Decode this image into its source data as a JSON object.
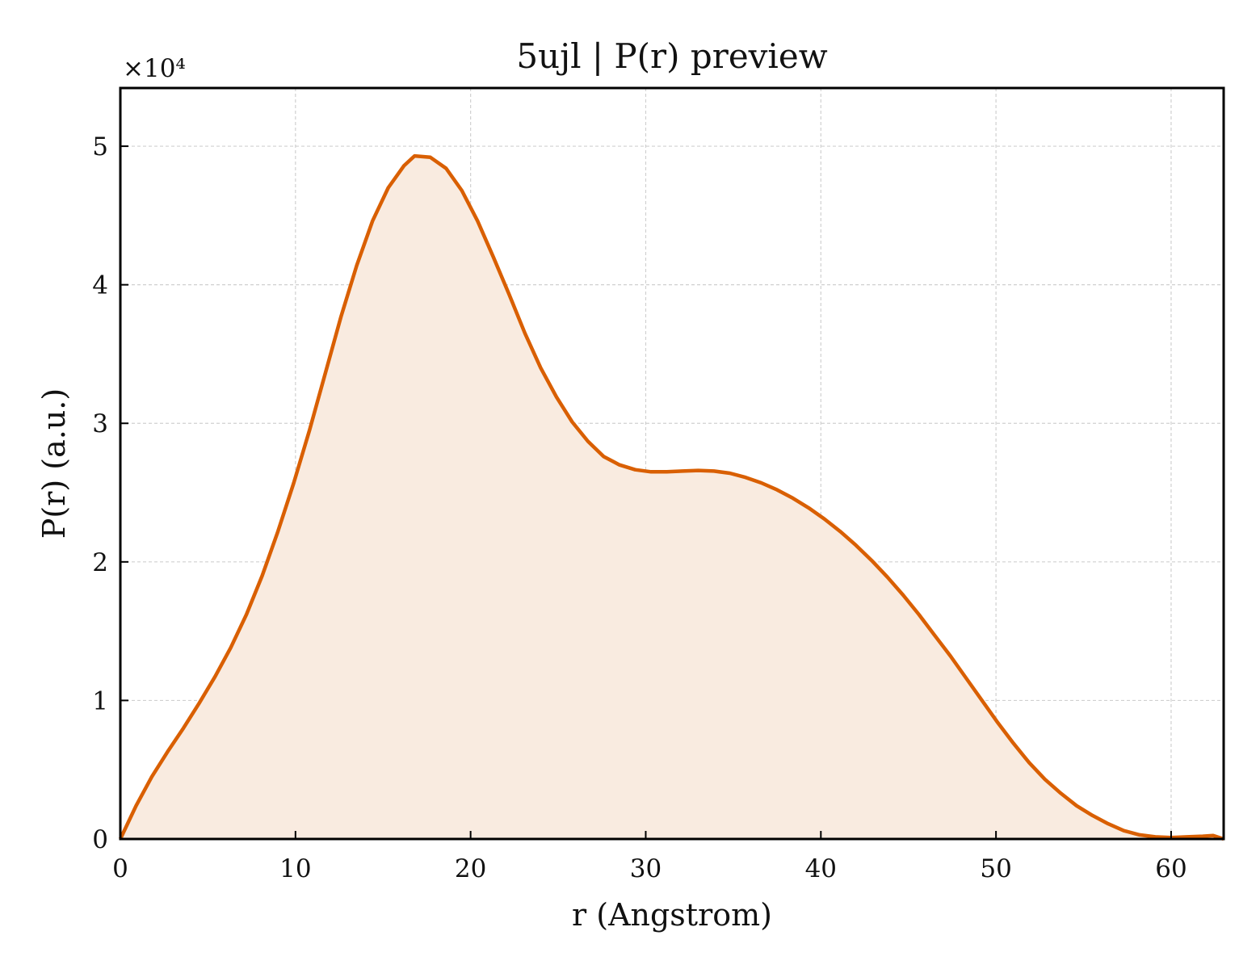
{
  "chart_data": {
    "type": "area",
    "title": "5ujl | P(r) preview",
    "xlabel": "r (Angstrom)",
    "ylabel": "P(r) (a.u.)",
    "y_scale_label": "×10⁴",
    "y_multiplier": 10000,
    "xlim": [
      0,
      63
    ],
    "ylim": [
      0,
      5.42
    ],
    "x_ticks": [
      0,
      10,
      20,
      30,
      40,
      50,
      60
    ],
    "y_ticks": [
      0,
      1,
      2,
      3,
      4,
      5
    ],
    "grid": true,
    "line_color": "#d95f02",
    "fill_color": "#f9ebe0",
    "series": [
      {
        "x": [
          0,
          0.9,
          1.8,
          2.7,
          3.6,
          4.5,
          5.4,
          6.3,
          7.2,
          8.1,
          9.0,
          9.9,
          10.8,
          11.7,
          12.6,
          13.5,
          14.4,
          15.3,
          16.2,
          16.8,
          17.7,
          18.6,
          19.5,
          20.4,
          21.3,
          22.2,
          23.1,
          24.0,
          24.9,
          25.8,
          26.7,
          27.6,
          28.5,
          29.4,
          30.3,
          31.2,
          32.1,
          33.0,
          33.9,
          34.8,
          35.7,
          36.6,
          37.5,
          38.4,
          39.3,
          40.2,
          41.1,
          42.0,
          42.9,
          43.8,
          44.7,
          45.6,
          46.5,
          47.4,
          48.3,
          49.2,
          50.1,
          51.0,
          51.9,
          52.8,
          53.7,
          54.6,
          55.5,
          56.4,
          57.3,
          58.2,
          59.1,
          60.0,
          60.9,
          61.8,
          62.4,
          63.0
        ],
        "y": [
          0,
          0.24,
          0.45,
          0.63,
          0.8,
          0.98,
          1.17,
          1.38,
          1.62,
          1.9,
          2.22,
          2.57,
          2.95,
          3.36,
          3.77,
          4.14,
          4.46,
          4.7,
          4.86,
          4.93,
          4.92,
          4.84,
          4.68,
          4.46,
          4.2,
          3.93,
          3.65,
          3.4,
          3.19,
          3.01,
          2.87,
          2.76,
          2.7,
          2.665,
          2.65,
          2.65,
          2.655,
          2.66,
          2.655,
          2.64,
          2.61,
          2.57,
          2.52,
          2.46,
          2.39,
          2.31,
          2.22,
          2.12,
          2.01,
          1.89,
          1.76,
          1.62,
          1.47,
          1.32,
          1.16,
          1.0,
          0.84,
          0.69,
          0.55,
          0.43,
          0.33,
          0.24,
          0.17,
          0.11,
          0.06,
          0.03,
          0.015,
          0.01,
          0.015,
          0.02,
          0.025,
          0.0
        ]
      }
    ]
  }
}
